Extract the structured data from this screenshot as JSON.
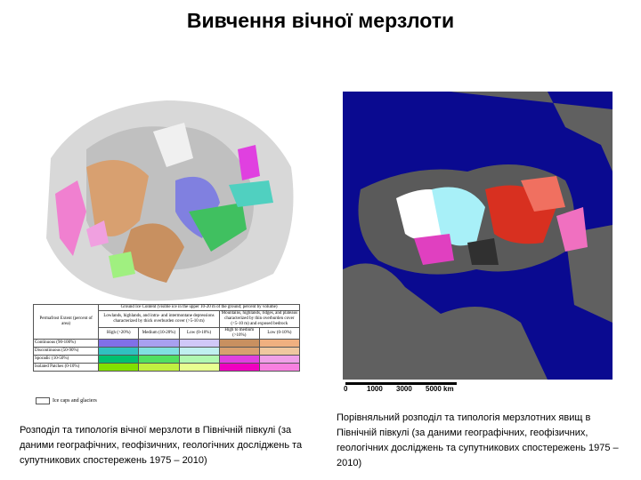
{
  "title": "Вивчення вічної мерзлоти",
  "left_figure": {
    "legend": {
      "corner_header": "Permafrost Extent (percent of area)",
      "group_header": "Ground Ice Content (visible ice in the upper 10-20 m of the ground; percent by volume)",
      "subheaders": [
        "Lowlands, highlands, and intra- and intermontane depressions characterized by thick overburden cover (>5-10 m)",
        "Mountains, highlands, ridges, and plateaus characterized by thin overburden cover (<5-10 m) and exposed bedrock"
      ],
      "columns": [
        "High (>20%)",
        "Medium (10-20%)",
        "Low (0-10%)",
        "High to medium (>10%)",
        "Low (0-10%)"
      ],
      "rows": [
        "Continuous (90-100%)",
        "Discontinuous (50-90%)",
        "Sporadic (10-50%)",
        "Isolated Patches (0-10%)"
      ],
      "footer": "Ice caps and glaciers"
    },
    "caption": "Розподіл та типологія вічної мерзлоти в Північній півкулі (за даними географічних, геофізичних, геологічних досліджень та супутникових спостережень 1975 – 2010)"
  },
  "right_figure": {
    "scale_labels": [
      "0",
      "1000",
      "3000",
      "5000 km"
    ],
    "caption": "Порівняльний розподіл та типологія мерзлотних явищ в Північній півкулі (за даними географічних, геофізичних, геологічних досліджень та супутникових спостережень 1975 – 2010)"
  }
}
